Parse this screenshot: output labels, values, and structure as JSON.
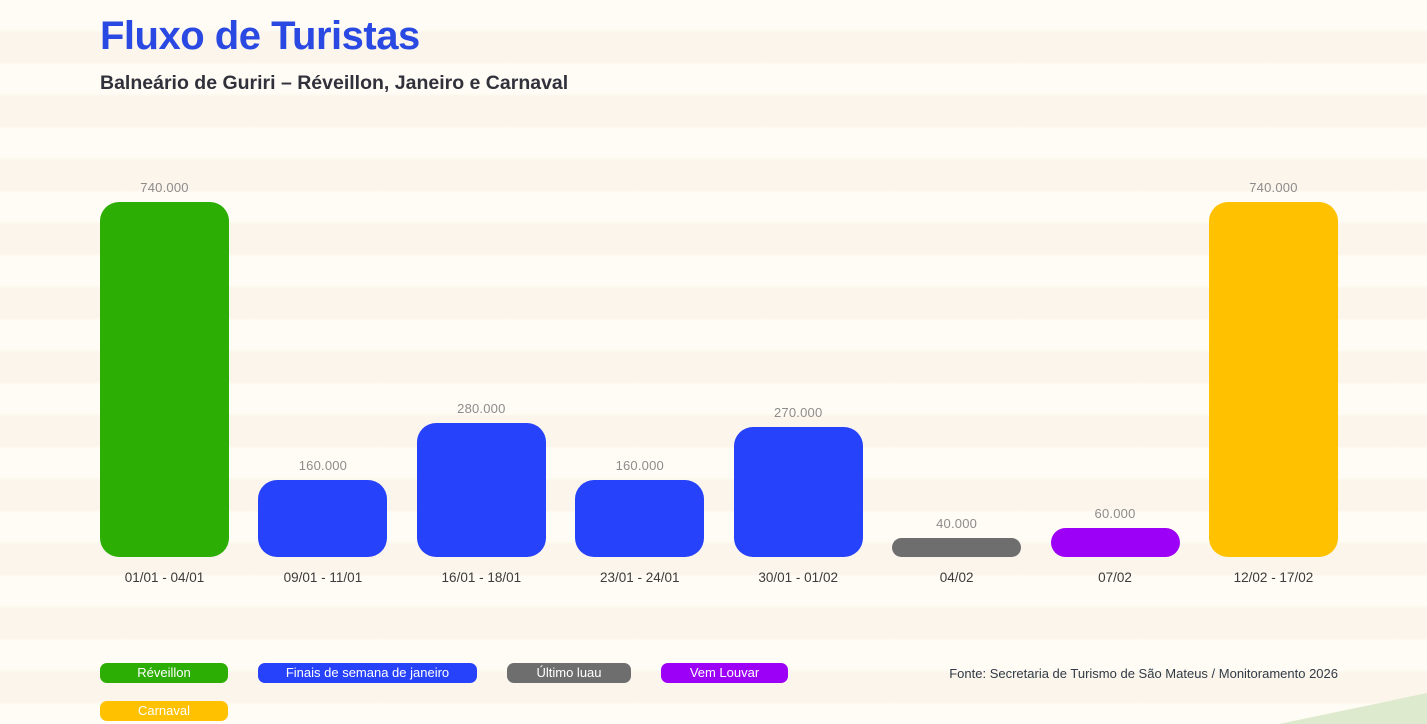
{
  "page": {
    "title": "Fluxo de Turistas",
    "subtitle": "Balneário de Guriri – Réveillon, Janeiro e Carnaval",
    "source": "Fonte: Secretaria de Turismo de São Mateus / Monitoramento 2026"
  },
  "colors": {
    "title": "#2A49E2",
    "subtitle": "#31313B",
    "background": "#FDF8F0",
    "corner_wedge": "#DEEACE",
    "value_label": "#8C8C8C",
    "green": "#2CAE05",
    "blue": "#2742FB",
    "gray": "#6E6E6E",
    "purple": "#9D00F6",
    "yellow": "#FFC100"
  },
  "chart_data": {
    "type": "bar",
    "title": "Fluxo de Turistas",
    "subtitle": "Balneário de Guriri – Réveillon, Janeiro e Carnaval",
    "categories": [
      "01/01 - 04/01",
      "09/01 - 11/01",
      "16/01 - 18/01",
      "23/01 - 24/01",
      "30/01 - 01/02",
      "04/02",
      "07/02",
      "12/02 - 17/02"
    ],
    "values": [
      740000,
      160000,
      280000,
      160000,
      270000,
      40000,
      60000,
      740000
    ],
    "value_labels": [
      "740.000",
      "160.000",
      "280.000",
      "160.000",
      "270.000",
      "40.000",
      "60.000",
      "740.000"
    ],
    "bar_colors": [
      "#2CAE05",
      "#2742FB",
      "#2742FB",
      "#2742FB",
      "#2742FB",
      "#6E6E6E",
      "#9D00F6",
      "#FFC100"
    ],
    "bar_series": [
      "Réveillon",
      "Finais de semana de janeiro",
      "Finais de semana de janeiro",
      "Finais de semana de janeiro",
      "Finais de semana de janeiro",
      "Último luau",
      "Vem Louvar",
      "Carnaval"
    ],
    "xlabel": "",
    "ylabel": "",
    "ylim": [
      0,
      740000
    ],
    "grid": false,
    "data_labels": true,
    "legend_position": "bottom-left"
  },
  "legend": {
    "items": [
      {
        "label": "Réveillon",
        "color": "#2CAE05"
      },
      {
        "label": "Finais de semana de janeiro",
        "color": "#2742FB"
      },
      {
        "label": "Último luau",
        "color": "#6E6E6E"
      },
      {
        "label": "Vem Louvar",
        "color": "#9D00F6"
      },
      {
        "label": "Carnaval",
        "color": "#FFC100"
      }
    ]
  }
}
